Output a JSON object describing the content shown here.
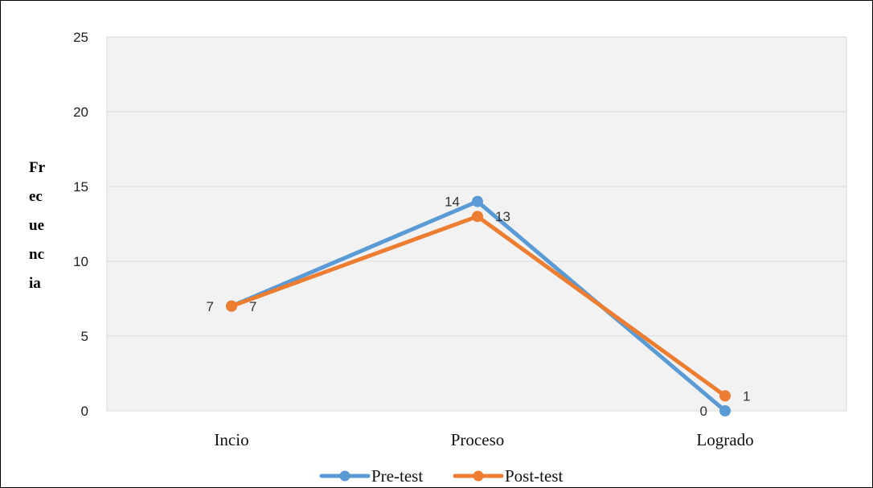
{
  "chart_data": {
    "type": "line",
    "title": "",
    "xlabel": "",
    "ylabel_lines": [
      "Fr",
      "ec",
      "ue",
      "nc",
      "ia"
    ],
    "categories": [
      "Incio",
      "Proceso",
      "Logrado"
    ],
    "series": [
      {
        "name": "Pre-test",
        "values": [
          7,
          14,
          0
        ],
        "color": "#5B9BD5"
      },
      {
        "name": "Post-test",
        "values": [
          7,
          13,
          1
        ],
        "color": "#ED7D31"
      }
    ],
    "ylim": [
      0,
      25
    ],
    "yticks": [
      0,
      5,
      10,
      15,
      20,
      25
    ],
    "grid": true,
    "legend": "bottom",
    "plot_background": "#F2F2F2"
  }
}
